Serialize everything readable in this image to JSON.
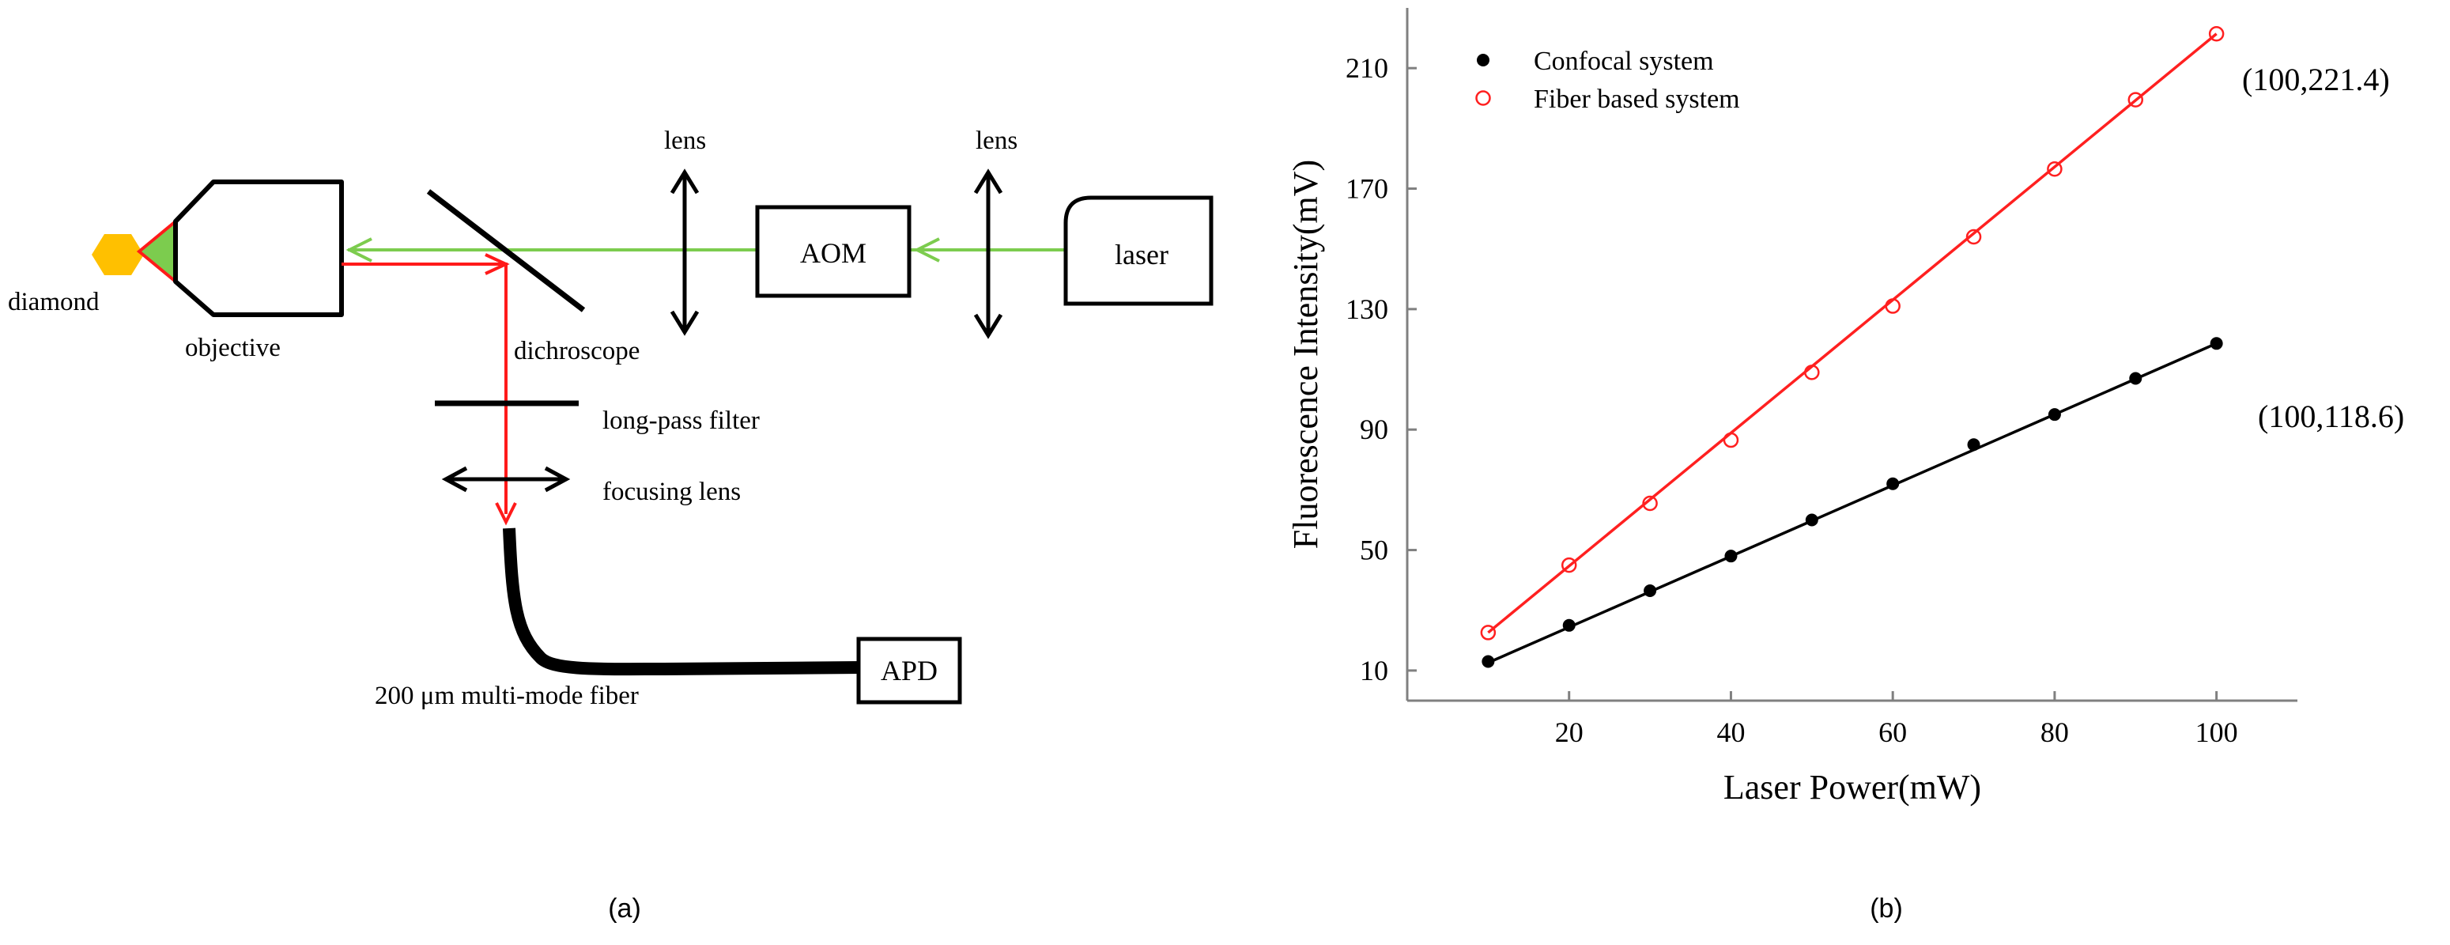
{
  "colors": {
    "green_beam": "#7ccc4e",
    "red_beam": "#ff1a1a",
    "diamond": "#ffc000",
    "ink": "#000000",
    "axis": "#808080",
    "confocal": "#000000",
    "fiber": "#ff2020"
  },
  "diagram": {
    "labels": {
      "diamond": "diamond",
      "objective": "objective",
      "dichroscope": "dichroscope",
      "lens_1": "lens",
      "lens_2": "lens",
      "aom": "AOM",
      "laser": "laser",
      "long_pass_filter": "long-pass filter",
      "focusing_lens": "focusing lens",
      "fiber": "200 μm multi-mode fiber",
      "apd": "APD"
    },
    "caption": "(a)"
  },
  "chart_caption": "(b)",
  "chart_data": {
    "type": "scatter",
    "xlabel": "Laser Power(mW)",
    "ylabel": "Fluorescence Intensity(mV)",
    "xlim": [
      0,
      110
    ],
    "ylim": [
      0,
      230
    ],
    "xticks": [
      20,
      40,
      60,
      80,
      100
    ],
    "yticks": [
      10,
      50,
      90,
      130,
      170,
      210
    ],
    "legend_position": "top-left",
    "series": [
      {
        "name": "Confocal system",
        "marker": "filled-circle",
        "color": "#000000",
        "x": [
          10,
          20,
          30,
          40,
          50,
          60,
          70,
          80,
          90,
          100
        ],
        "y": [
          13,
          25,
          36.5,
          48,
          60,
          72,
          85,
          95,
          107,
          118.6
        ],
        "fit": {
          "x0": 10,
          "y0": 12.6,
          "x1": 100,
          "y1": 118.6
        }
      },
      {
        "name": "Fiber based system",
        "marker": "open-circle",
        "color": "#ff2020",
        "x": [
          10,
          20,
          30,
          40,
          50,
          60,
          70,
          80,
          90,
          100
        ],
        "y": [
          22.6,
          45,
          65.5,
          86.5,
          109,
          131,
          154,
          176.5,
          199.5,
          221.4
        ],
        "fit": {
          "x0": 10,
          "y0": 22.6,
          "x1": 100,
          "y1": 221.4
        }
      }
    ],
    "annotations": [
      {
        "text": "(100,221.4)"
      },
      {
        "text": "(100,118.6)"
      }
    ]
  }
}
